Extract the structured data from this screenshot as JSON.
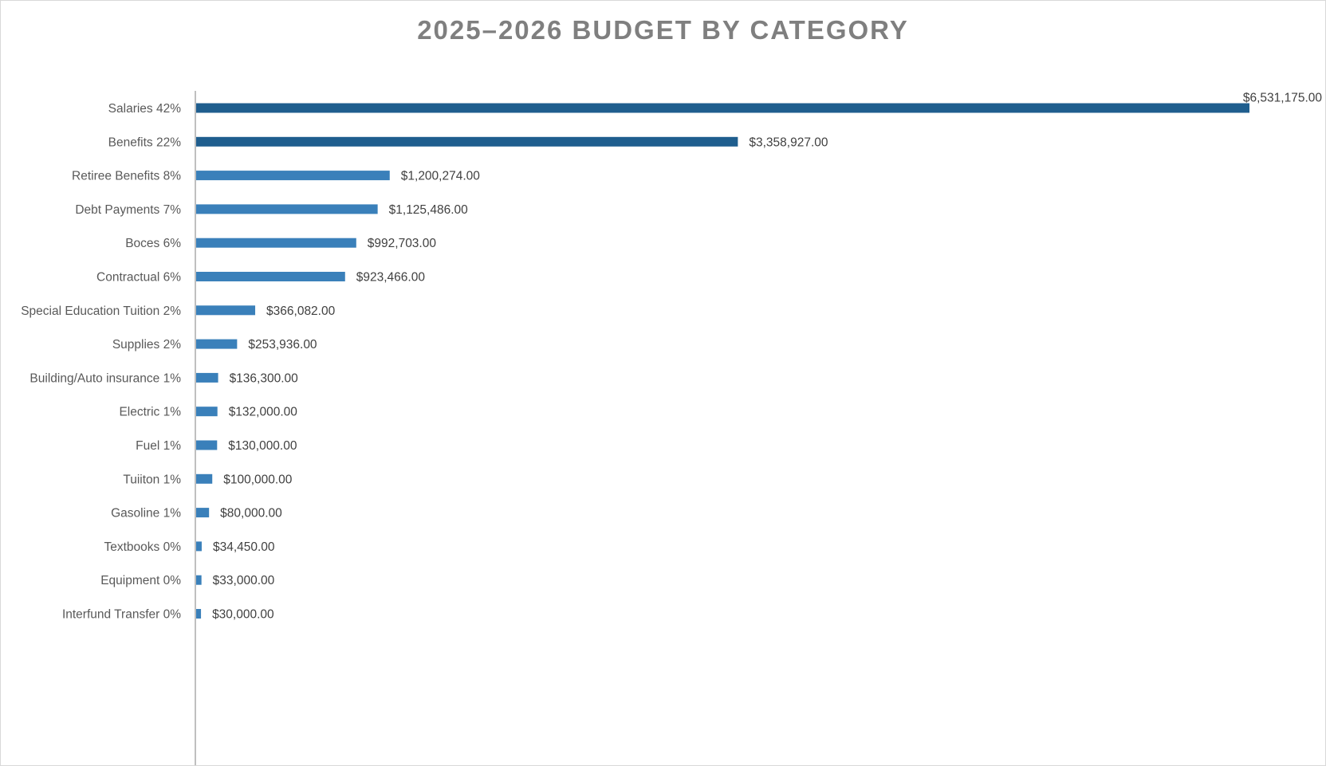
{
  "chart_data": {
    "type": "bar",
    "orientation": "horizontal",
    "title": "2025–2026 BUDGET BY CATEGORY",
    "xlabel": "",
    "ylabel": "",
    "grid": false,
    "legend": "none",
    "categories": [
      "Salaries 42%",
      "Benefits 22%",
      "Retiree Benefits 8%",
      "Debt Payments 7%",
      "Boces 6%",
      "Contractual 6%",
      "Special Education Tuition 2%",
      "Supplies 2%",
      "Building/Auto insurance 1%",
      "Electric 1%",
      "Fuel  1%",
      "Tuiiton 1%",
      "Gasoline 1%",
      "Textbooks 0%",
      "Equipment 0%",
      "Interfund Transfer 0%"
    ],
    "values": [
      6531175,
      3358927,
      1200274,
      1125486,
      992703,
      923466,
      366082,
      253936,
      136300,
      132000,
      130000,
      100000,
      80000,
      34450,
      33000,
      30000
    ],
    "data_labels": [
      "$6,531,175.00",
      "$3,358,927.00",
      "$1,200,274.00",
      "$1,125,486.00",
      "$992,703.00",
      "$923,466.00",
      "$366,082.00",
      "$253,936.00",
      "$136,300.00",
      "$132,000.00",
      "$130,000.00",
      "$100,000.00",
      "$80,000.00",
      "$34,450.00",
      "$33,000.00",
      "$30,000.00"
    ],
    "colors": {
      "dark": "#1f5e8e",
      "light": "#3a80ba",
      "axis": "#bfbfbf"
    }
  }
}
